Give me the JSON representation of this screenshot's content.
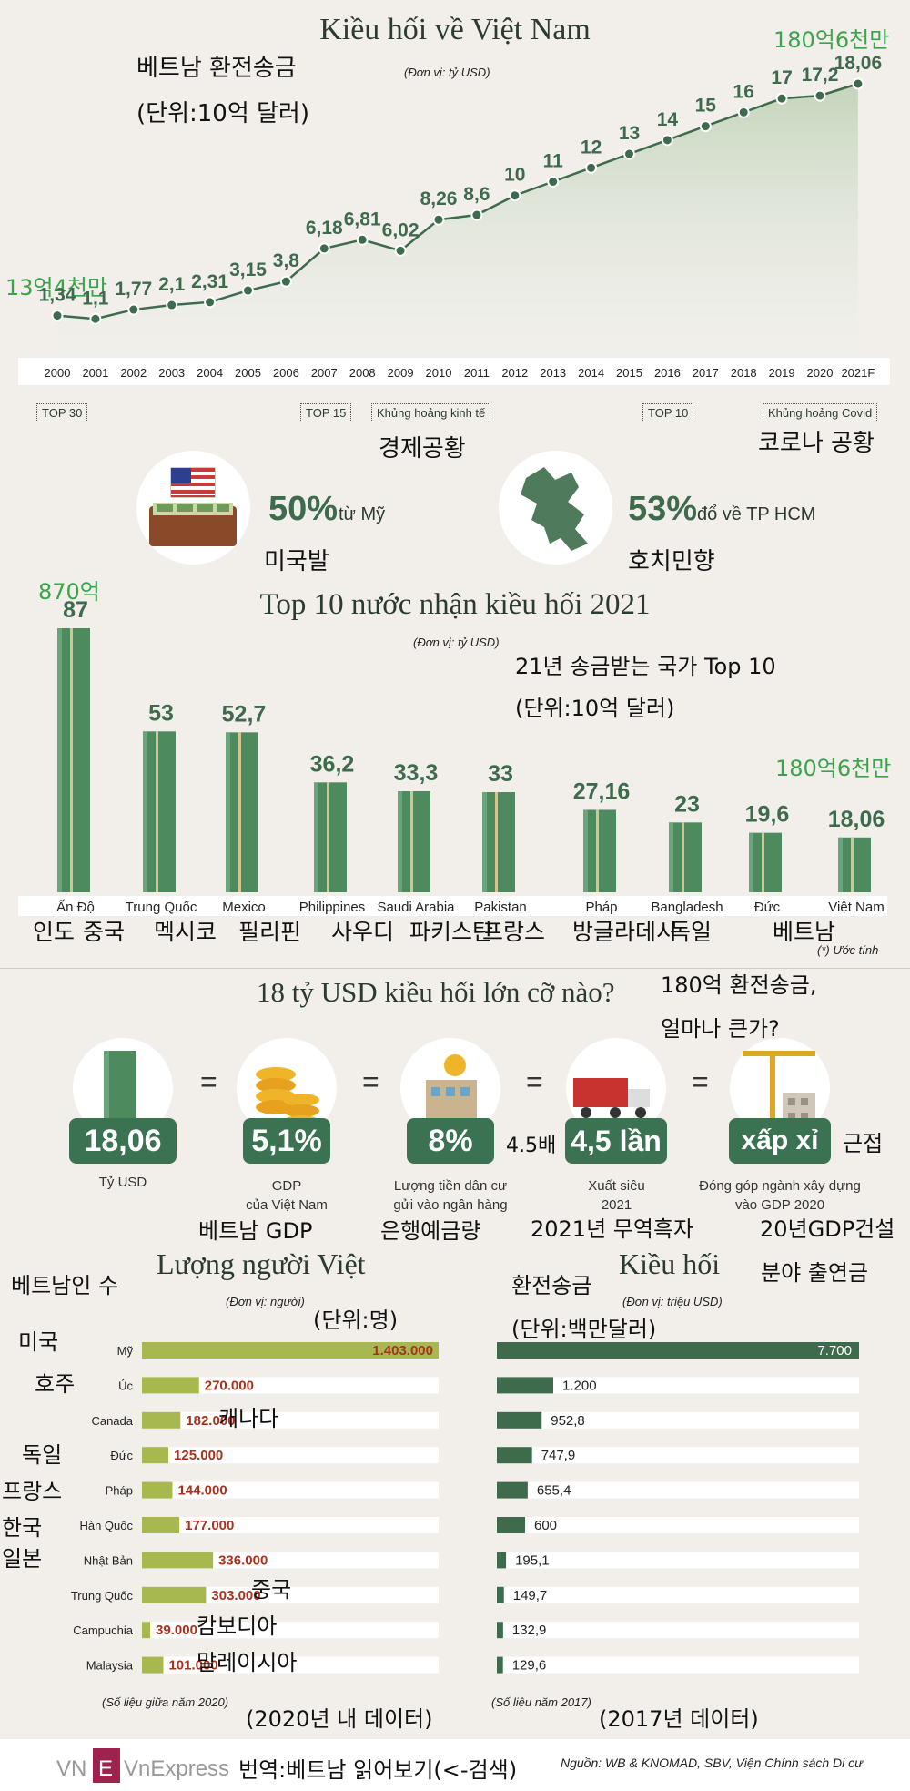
{
  "header": {
    "title": "Kiều hối về Việt Nam",
    "unit": "(Đơn vị: tỷ USD)",
    "kr_title": "베트남 환전송금",
    "kr_unit": "(단위:10억 달러)",
    "note_left": "13억4천만",
    "note_right": "180억6천만"
  },
  "timeline": {
    "milestones": [
      "TOP 30",
      "TOP 15",
      "Khủng hoảng kinh tế",
      "TOP 10",
      "Khủng hoảng Covid"
    ],
    "kr_crisis": "경제공황",
    "kr_covid": "코로나 공황"
  },
  "stats": {
    "us_pct": "50%",
    "us_text": "từ Mỹ",
    "us_kr": "미국발",
    "hcm_pct": "53%",
    "hcm_text": "đổ về TP HCM",
    "hcm_kr": "호치민향"
  },
  "top10": {
    "title": "Top 10 nước nhận kiều hối 2021",
    "unit": "(Đơn vị: tỷ USD)",
    "kr_title": "21년 송금받는 국가 Top 10",
    "kr_unit": "(단위:10억 달러)",
    "note_india": "870억",
    "note_vn": "180억6천만",
    "estimate_note": "(*) Ước tính",
    "kr_names": [
      "인도",
      "중국",
      "멕시코",
      "필리핀",
      "사우디",
      "파키스탄",
      "프랑스",
      "방글라데시",
      "독일",
      "베트남"
    ]
  },
  "compare": {
    "title": "18 tỷ USD kiều hối lớn cỡ nào?",
    "kr_title_1": "180억 환전송금,",
    "kr_title_2": "얼마나 큰가?",
    "items": [
      {
        "value": "18,06",
        "caption": "Tỷ USD",
        "kr": ""
      },
      {
        "value": "5,1%",
        "caption": "GDP\ncủa Việt Nam",
        "kr": "베트남 GDP"
      },
      {
        "value": "8%",
        "caption": "Lượng tiền dân cư\ngửi vào ngân hàng",
        "kr": "은행예금량"
      },
      {
        "value": "4,5 lần",
        "caption": "Xuất siêu\n2021",
        "kr": "2021년 무역흑자"
      },
      {
        "value": "xấp xỉ",
        "caption": "Đóng góp ngành xây dựng\nvào GDP 2020",
        "kr": "20년GDP건설"
      }
    ],
    "eq": "=",
    "kr_45": "4.5배",
    "kr_approx": "근접",
    "kr_construction_2": "분야 출연금"
  },
  "people": {
    "title": "Lượng người Việt",
    "unit": "(Đơn vị: người)",
    "kr_title": "베트남인 수",
    "kr_unit": "(단위:명)",
    "source": "(Số liệu giữa năm 2020)",
    "kr_source": "(2020년 내 데이터)",
    "kr_labels": [
      "미국",
      "호주",
      "캐나다",
      "독일",
      "프랑스",
      "한국",
      "일본",
      "중국",
      "캄보디아",
      "말레이시아"
    ]
  },
  "remit": {
    "title": "Kiều hối",
    "unit": "(Đơn vị: triệu USD)",
    "kr_title": "환전송금",
    "kr_unit": "(단위:백만달러)",
    "source": "(Số liệu năm 2017)",
    "kr_source": "(2017년 데이터)"
  },
  "footer": {
    "logo": "VnExpress",
    "translation": "번역:베트남 읽어보기(<-검색)",
    "source": "Nguồn: WB & KNOMAD, SBV, Viện Chính sách Di cư"
  },
  "chart_data": [
    {
      "type": "area",
      "title": "Kiều hối về Việt Nam",
      "categories": [
        "2000",
        "2001",
        "2002",
        "2003",
        "2004",
        "2005",
        "2006",
        "2007",
        "2008",
        "2009",
        "2010",
        "2011",
        "2012",
        "2013",
        "2014",
        "2015",
        "2016",
        "2017",
        "2018",
        "2019",
        "2020",
        "2021F"
      ],
      "values": [
        1.34,
        1.1,
        1.77,
        2.1,
        2.31,
        3.15,
        3.8,
        6.18,
        6.81,
        6.02,
        8.26,
        8.6,
        10,
        11,
        12,
        13,
        14,
        15,
        16,
        17,
        17.2,
        18.06
      ],
      "labels": [
        "1,34",
        "1,1",
        "1,77",
        "2,1",
        "2,31",
        "3,15",
        "3,8",
        "6,18",
        "6,81",
        "6,02",
        "8,26",
        "8,6",
        "10",
        "11",
        "12",
        "13",
        "14",
        "15",
        "16",
        "17",
        "17,2",
        "18,06"
      ],
      "ylabel": "(Đơn vị: tỷ USD)"
    },
    {
      "type": "bar",
      "title": "Top 10 nước nhận kiều hối 2021",
      "categories": [
        "Ấn Độ",
        "Trung Quốc",
        "Mexico",
        "Philippines",
        "Saudi Arabia",
        "Pakistan",
        "Pháp",
        "Bangladesh",
        "Đức",
        "Việt Nam"
      ],
      "values": [
        87,
        53,
        52.7,
        36.2,
        33.3,
        33,
        27.16,
        23,
        19.6,
        18.06
      ],
      "labels": [
        "87",
        "53",
        "52,7",
        "36,2",
        "33,3",
        "33",
        "27,16",
        "23",
        "19,6",
        "18,06"
      ]
    },
    {
      "type": "bar",
      "orientation": "horizontal",
      "title": "Lượng người Việt",
      "categories": [
        "Mỹ",
        "Úc",
        "Canada",
        "Đức",
        "Pháp",
        "Hàn Quốc",
        "Nhật Bản",
        "Trung Quốc",
        "Campuchia",
        "Malaysia"
      ],
      "values": [
        1403000,
        270000,
        182000,
        125000,
        144000,
        177000,
        336000,
        303000,
        39000,
        101000
      ],
      "labels": [
        "1.403.000",
        "270.000",
        "182.000",
        "125.000",
        "144.000",
        "177.000",
        "336.000",
        "303.000",
        "39.000",
        "101.000"
      ]
    },
    {
      "type": "bar",
      "orientation": "horizontal",
      "title": "Kiều hối",
      "categories": [
        "Mỹ",
        "Úc",
        "Canada",
        "Đức",
        "Pháp",
        "Hàn Quốc",
        "Nhật Bản",
        "Trung Quốc",
        "Campuchia",
        "Malaysia"
      ],
      "values": [
        7700,
        1200,
        952.8,
        747.9,
        655.4,
        600,
        195.1,
        149.7,
        132.9,
        129.6
      ],
      "labels": [
        "7.700",
        "1.200",
        "952,8",
        "747,9",
        "655,4",
        "600",
        "195,1",
        "149,7",
        "132,9",
        "129,6"
      ]
    }
  ]
}
